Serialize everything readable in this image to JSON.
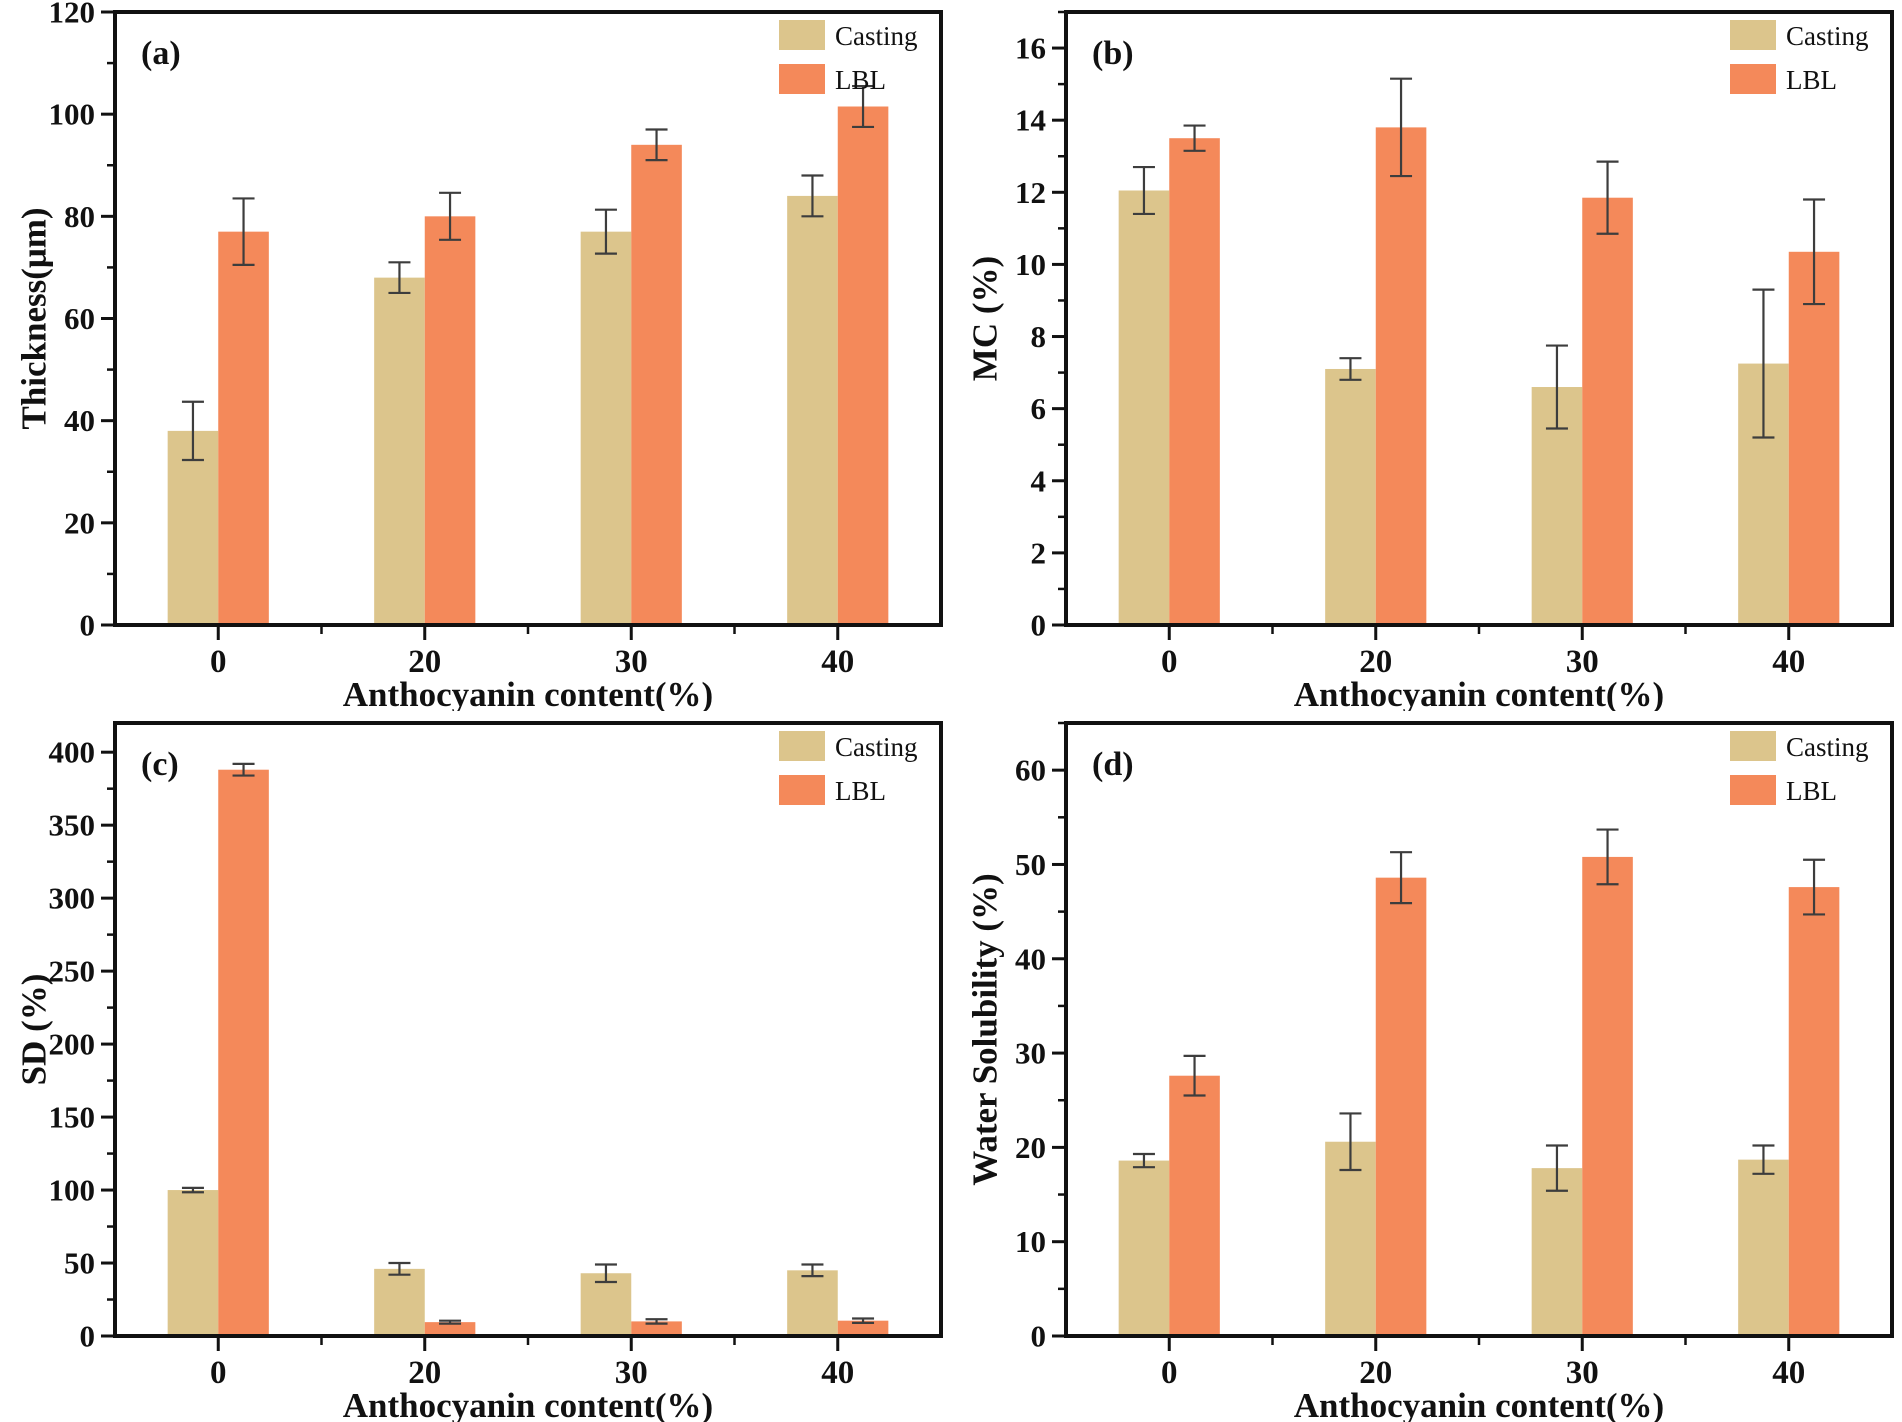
{
  "figure": {
    "background": "#FFFFFF",
    "x_axis_title": "Anthocyanin content(%)",
    "categories": [
      "0",
      "20",
      "30",
      "40"
    ],
    "legend": {
      "entries": [
        {
          "label": "Casting",
          "color_key": "casting"
        },
        {
          "label": "LBL",
          "color_key": "lbl"
        }
      ],
      "position": "top-right"
    },
    "colors": {
      "casting": "#DCC58C",
      "lbl": "#F4895A",
      "error_bar": "#3D3D3D",
      "axis": "#111111",
      "text": "#111111"
    }
  },
  "chart_data": [
    {
      "type": "bar",
      "panel_label": "(a)",
      "xlabel": "Anthocyanin content(%)",
      "ylabel": "Thickness(μm)",
      "categories": [
        "0",
        "20",
        "30",
        "40"
      ],
      "ylim": [
        0,
        120
      ],
      "y_major_step": 20,
      "y_minor_step": 10,
      "grid": false,
      "legend_position": "top-right",
      "series": [
        {
          "name": "Casting",
          "color_key": "casting",
          "values": [
            38,
            68,
            77,
            84
          ],
          "errors": [
            5.7,
            3,
            4.3,
            4
          ]
        },
        {
          "name": "LBL",
          "color_key": "lbl",
          "values": [
            77,
            80,
            94,
            101.5
          ],
          "errors": [
            6.5,
            4.6,
            3,
            4
          ]
        }
      ]
    },
    {
      "type": "bar",
      "panel_label": "(b)",
      "xlabel": "Anthocyanin content(%)",
      "ylabel": "MC (%)",
      "categories": [
        "0",
        "20",
        "30",
        "40"
      ],
      "ylim": [
        0,
        17
      ],
      "y_major_step": 2,
      "y_minor_step": 1,
      "grid": false,
      "legend_position": "top-right",
      "series": [
        {
          "name": "Casting",
          "color_key": "casting",
          "values": [
            12.05,
            7.1,
            6.6,
            7.25
          ],
          "errors": [
            0.65,
            0.3,
            1.15,
            2.05
          ]
        },
        {
          "name": "LBL",
          "color_key": "lbl",
          "values": [
            13.5,
            13.8,
            11.85,
            10.35
          ],
          "errors": [
            0.35,
            1.35,
            1.0,
            1.45
          ]
        }
      ]
    },
    {
      "type": "bar",
      "panel_label": "(c)",
      "xlabel": "Anthocyanin content(%)",
      "ylabel": "SD (%)",
      "categories": [
        "0",
        "20",
        "30",
        "40"
      ],
      "ylim": [
        0,
        420
      ],
      "y_major_step": 50,
      "y_minor_step": 25,
      "grid": false,
      "legend_position": "top-right",
      "series": [
        {
          "name": "Casting",
          "color_key": "casting",
          "values": [
            100,
            46,
            43,
            45
          ],
          "errors": [
            1.5,
            4,
            6,
            4
          ]
        },
        {
          "name": "LBL",
          "color_key": "lbl",
          "values": [
            388,
            9.5,
            10,
            10.5
          ],
          "errors": [
            4,
            1,
            1.5,
            1.5
          ]
        }
      ]
    },
    {
      "type": "bar",
      "panel_label": "(d)",
      "xlabel": "Anthocyanin content(%)",
      "ylabel": "Water Solubility (%)",
      "categories": [
        "0",
        "20",
        "30",
        "40"
      ],
      "ylim": [
        0,
        65
      ],
      "y_major_step": 10,
      "y_minor_step": 5,
      "grid": false,
      "legend_position": "top-right",
      "series": [
        {
          "name": "Casting",
          "color_key": "casting",
          "values": [
            18.6,
            20.6,
            17.8,
            18.7
          ],
          "errors": [
            0.7,
            3.0,
            2.4,
            1.5
          ]
        },
        {
          "name": "LBL",
          "color_key": "lbl",
          "values": [
            27.6,
            48.6,
            50.8,
            47.6
          ],
          "errors": [
            2.1,
            2.7,
            2.9,
            2.9
          ]
        }
      ]
    }
  ]
}
